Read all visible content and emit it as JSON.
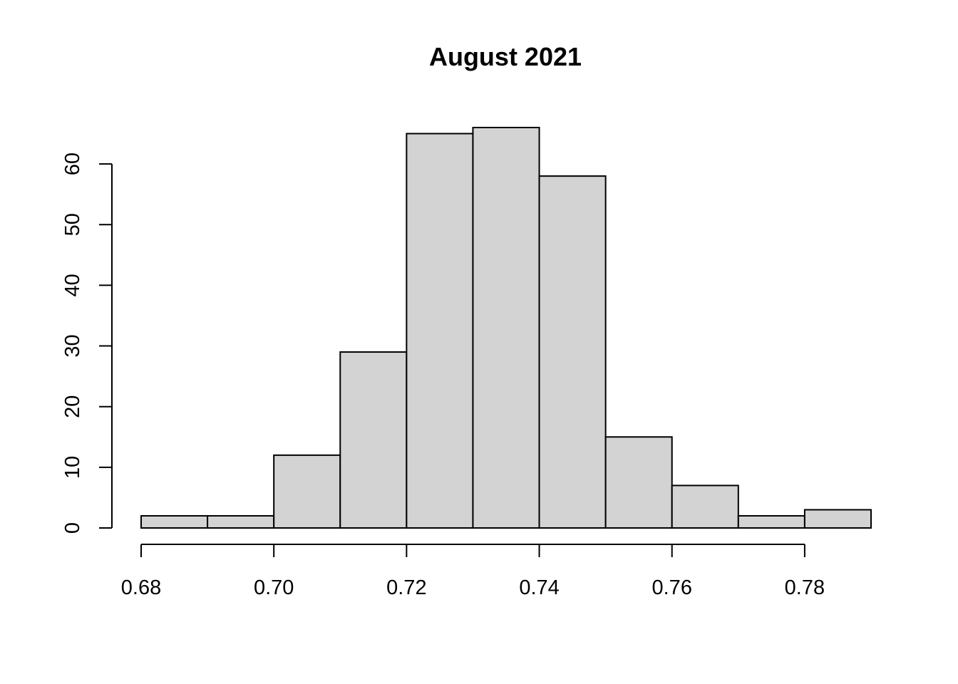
{
  "chart_data": {
    "type": "bar",
    "title": "August 2021",
    "xlabel": "",
    "ylabel": "",
    "bin_edges": [
      0.68,
      0.69,
      0.7,
      0.71,
      0.72,
      0.73,
      0.74,
      0.75,
      0.76,
      0.77,
      0.78,
      0.79
    ],
    "values": [
      2,
      2,
      12,
      29,
      65,
      66,
      58,
      15,
      7,
      2,
      3
    ],
    "x_ticks": [
      "0.68",
      "0.70",
      "0.72",
      "0.74",
      "0.76",
      "0.78"
    ],
    "x_tick_values": [
      0.68,
      0.7,
      0.72,
      0.74,
      0.76,
      0.78
    ],
    "y_ticks": [
      "0",
      "10",
      "20",
      "30",
      "40",
      "50",
      "60"
    ],
    "y_tick_values": [
      0,
      10,
      20,
      30,
      40,
      50,
      60
    ],
    "xlim": [
      0.68,
      0.79
    ],
    "ylim": [
      0,
      66
    ],
    "grid": false,
    "legend": "none",
    "bar_color": "#d3d3d3",
    "edge_color": "#000000"
  }
}
